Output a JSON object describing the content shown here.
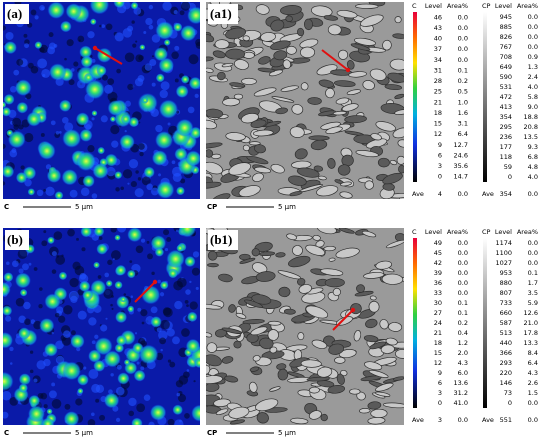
{
  "rows": [
    {
      "maps": [
        {
          "label": "(a)",
          "element": "C",
          "scale": "5 μm"
        },
        {
          "label": "(a1)",
          "element": "CP",
          "scale": "5 μm"
        }
      ],
      "legends": [
        {
          "element": "C",
          "level_header": "Level",
          "area_header": "Area%",
          "levels": [
            "46",
            "43",
            "40",
            "37",
            "34",
            "31",
            "28",
            "25",
            "21",
            "18",
            "15",
            "12",
            "9",
            "6",
            "3",
            "0"
          ],
          "areas": [
            "0.0",
            "0.0",
            "0.0",
            "0.0",
            "0.0",
            "0.1",
            "0.2",
            "0.5",
            "1.0",
            "1.6",
            "3.1",
            "6.4",
            "12.7",
            "24.6",
            "35.6",
            "14.7"
          ],
          "ave_label": "Ave",
          "ave": "4",
          "ave_area": "0.0"
        },
        {
          "element": "CP",
          "level_header": "Level",
          "area_header": "Area%",
          "levels": [
            "945",
            "885",
            "826",
            "767",
            "708",
            "649",
            "590",
            "531",
            "472",
            "413",
            "354",
            "295",
            "236",
            "177",
            "118",
            "59",
            "0"
          ],
          "areas": [
            "0.0",
            "0.0",
            "0.0",
            "0.0",
            "0.9",
            "1.3",
            "2.4",
            "4.0",
            "5.8",
            "9.0",
            "18.8",
            "20.8",
            "13.5",
            "9.3",
            "6.8",
            "4.8",
            "4.0"
          ],
          "ave_label": "Ave",
          "ave": "354",
          "ave_area": "0.0"
        }
      ]
    },
    {
      "maps": [
        {
          "label": "(b)",
          "element": "C",
          "scale": "5 μm"
        },
        {
          "label": "(b1)",
          "element": "CP",
          "scale": "5 μm"
        }
      ],
      "legends": [
        {
          "element": "C",
          "level_header": "Level",
          "area_header": "Area%",
          "levels": [
            "49",
            "45",
            "42",
            "39",
            "36",
            "33",
            "30",
            "27",
            "24",
            "21",
            "18",
            "15",
            "12",
            "9",
            "6",
            "3",
            "0"
          ],
          "areas": [
            "0.0",
            "0.0",
            "0.0",
            "0.0",
            "0.0",
            "0.0",
            "0.1",
            "0.1",
            "0.2",
            "0.4",
            "1.2",
            "2.0",
            "4.3",
            "6.0",
            "13.6",
            "31.2",
            "41.0"
          ],
          "ave_label": "Ave",
          "ave": "3",
          "ave_area": "0.0"
        },
        {
          "element": "CP",
          "level_header": "Level",
          "area_header": "Area%",
          "levels": [
            "1174",
            "1100",
            "1027",
            "953",
            "880",
            "807",
            "733",
            "660",
            "587",
            "513",
            "440",
            "366",
            "293",
            "220",
            "146",
            "73",
            "0"
          ],
          "areas": [
            "0.0",
            "0.0",
            "0.0",
            "0.1",
            "1.7",
            "3.5",
            "5.9",
            "12.6",
            "21.0",
            "17.8",
            "13.3",
            "8.4",
            "6.4",
            "4.3",
            "2.6",
            "1.5",
            "0.0"
          ],
          "ave_label": "Ave",
          "ave": "551",
          "ave_area": "0.0"
        }
      ]
    }
  ]
}
